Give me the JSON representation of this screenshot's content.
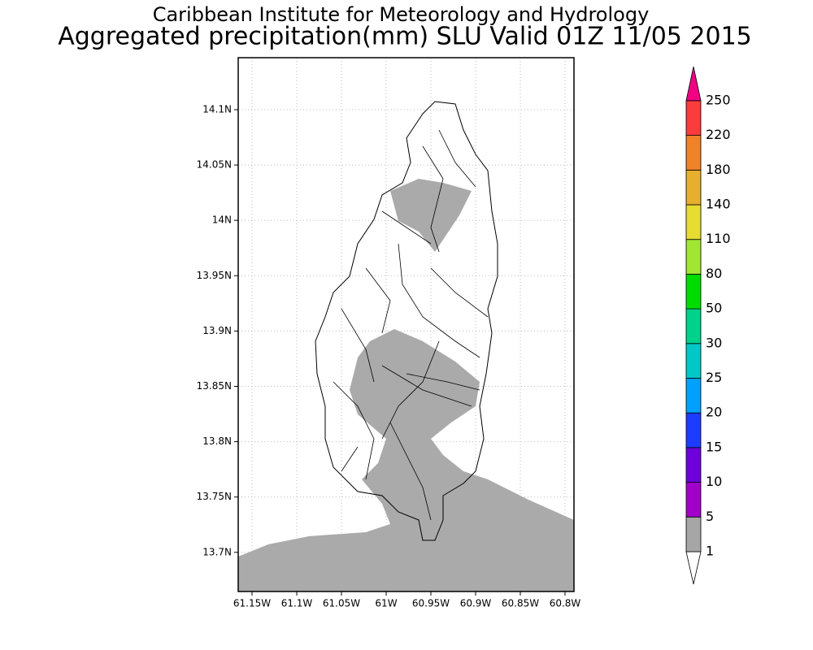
{
  "title": "Caribbean Institute for Meteorology and Hydrology",
  "subtitle": "Aggregated precipitation(mm) SLU Valid 01Z 11/05 2015",
  "map": {
    "lat_ticks": [
      "14.1N",
      "14.05N",
      "14N",
      "13.95N",
      "13.9N",
      "13.85N",
      "13.8N",
      "13.75N",
      "13.7N"
    ],
    "lon_ticks": [
      "61.15W",
      "61.1W",
      "61.05W",
      "61W",
      "60.95W",
      "60.9W",
      "60.85W",
      "60.8W"
    ]
  },
  "colorbar": {
    "levels": [
      1,
      5,
      10,
      15,
      20,
      25,
      30,
      50,
      80,
      110,
      140,
      180,
      220,
      250
    ],
    "colors": [
      "#ffffff",
      "#a6a6a6",
      "#a000c8",
      "#6e00dc",
      "#1e3cff",
      "#00a0ff",
      "#00c8c8",
      "#00d28c",
      "#00dc00",
      "#a0e632",
      "#e6dc32",
      "#e6af2d",
      "#f08228",
      "#fa3c3c",
      "#f00082"
    ]
  }
}
